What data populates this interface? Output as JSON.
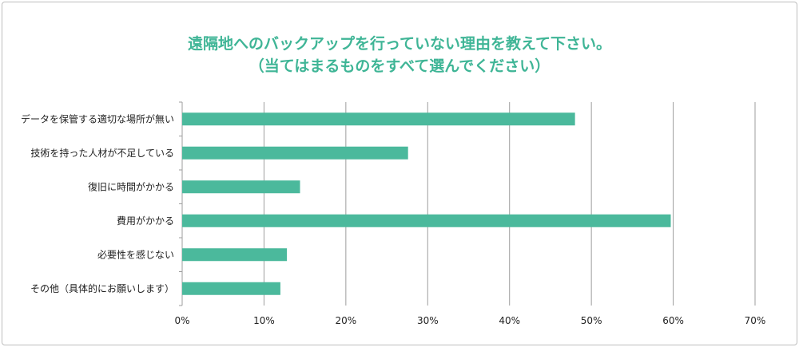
{
  "title": {
    "line1": "遠隔地へのバックアップを行っていない理由を教えて下さい。",
    "line2": "（当てはまるものをすべて選んでください）"
  },
  "colors": {
    "bar": "#4bb99c",
    "title": "#3fb596",
    "grid": "#9e9e9e"
  },
  "chart_data": {
    "type": "bar",
    "orientation": "horizontal",
    "title": "遠隔地へのバックアップを行っていない理由を教えて下さい。（当てはまるものをすべて選んでください）",
    "categories": [
      "データを保管する適切な場所が無い",
      "技術を持った人材が不足している",
      "復旧に時間がかかる",
      "費用がかかる",
      "必要性を感じない",
      "その他（具体的にお願いします）"
    ],
    "values": [
      48.0,
      27.6,
      14.4,
      59.7,
      12.8,
      12.0
    ],
    "unit": "%",
    "xlim": [
      0,
      70
    ],
    "xticks": [
      "0%",
      "10%",
      "20%",
      "30%",
      "40%",
      "50%",
      "60%",
      "70%"
    ],
    "grid": "vertical",
    "legend": "none"
  }
}
